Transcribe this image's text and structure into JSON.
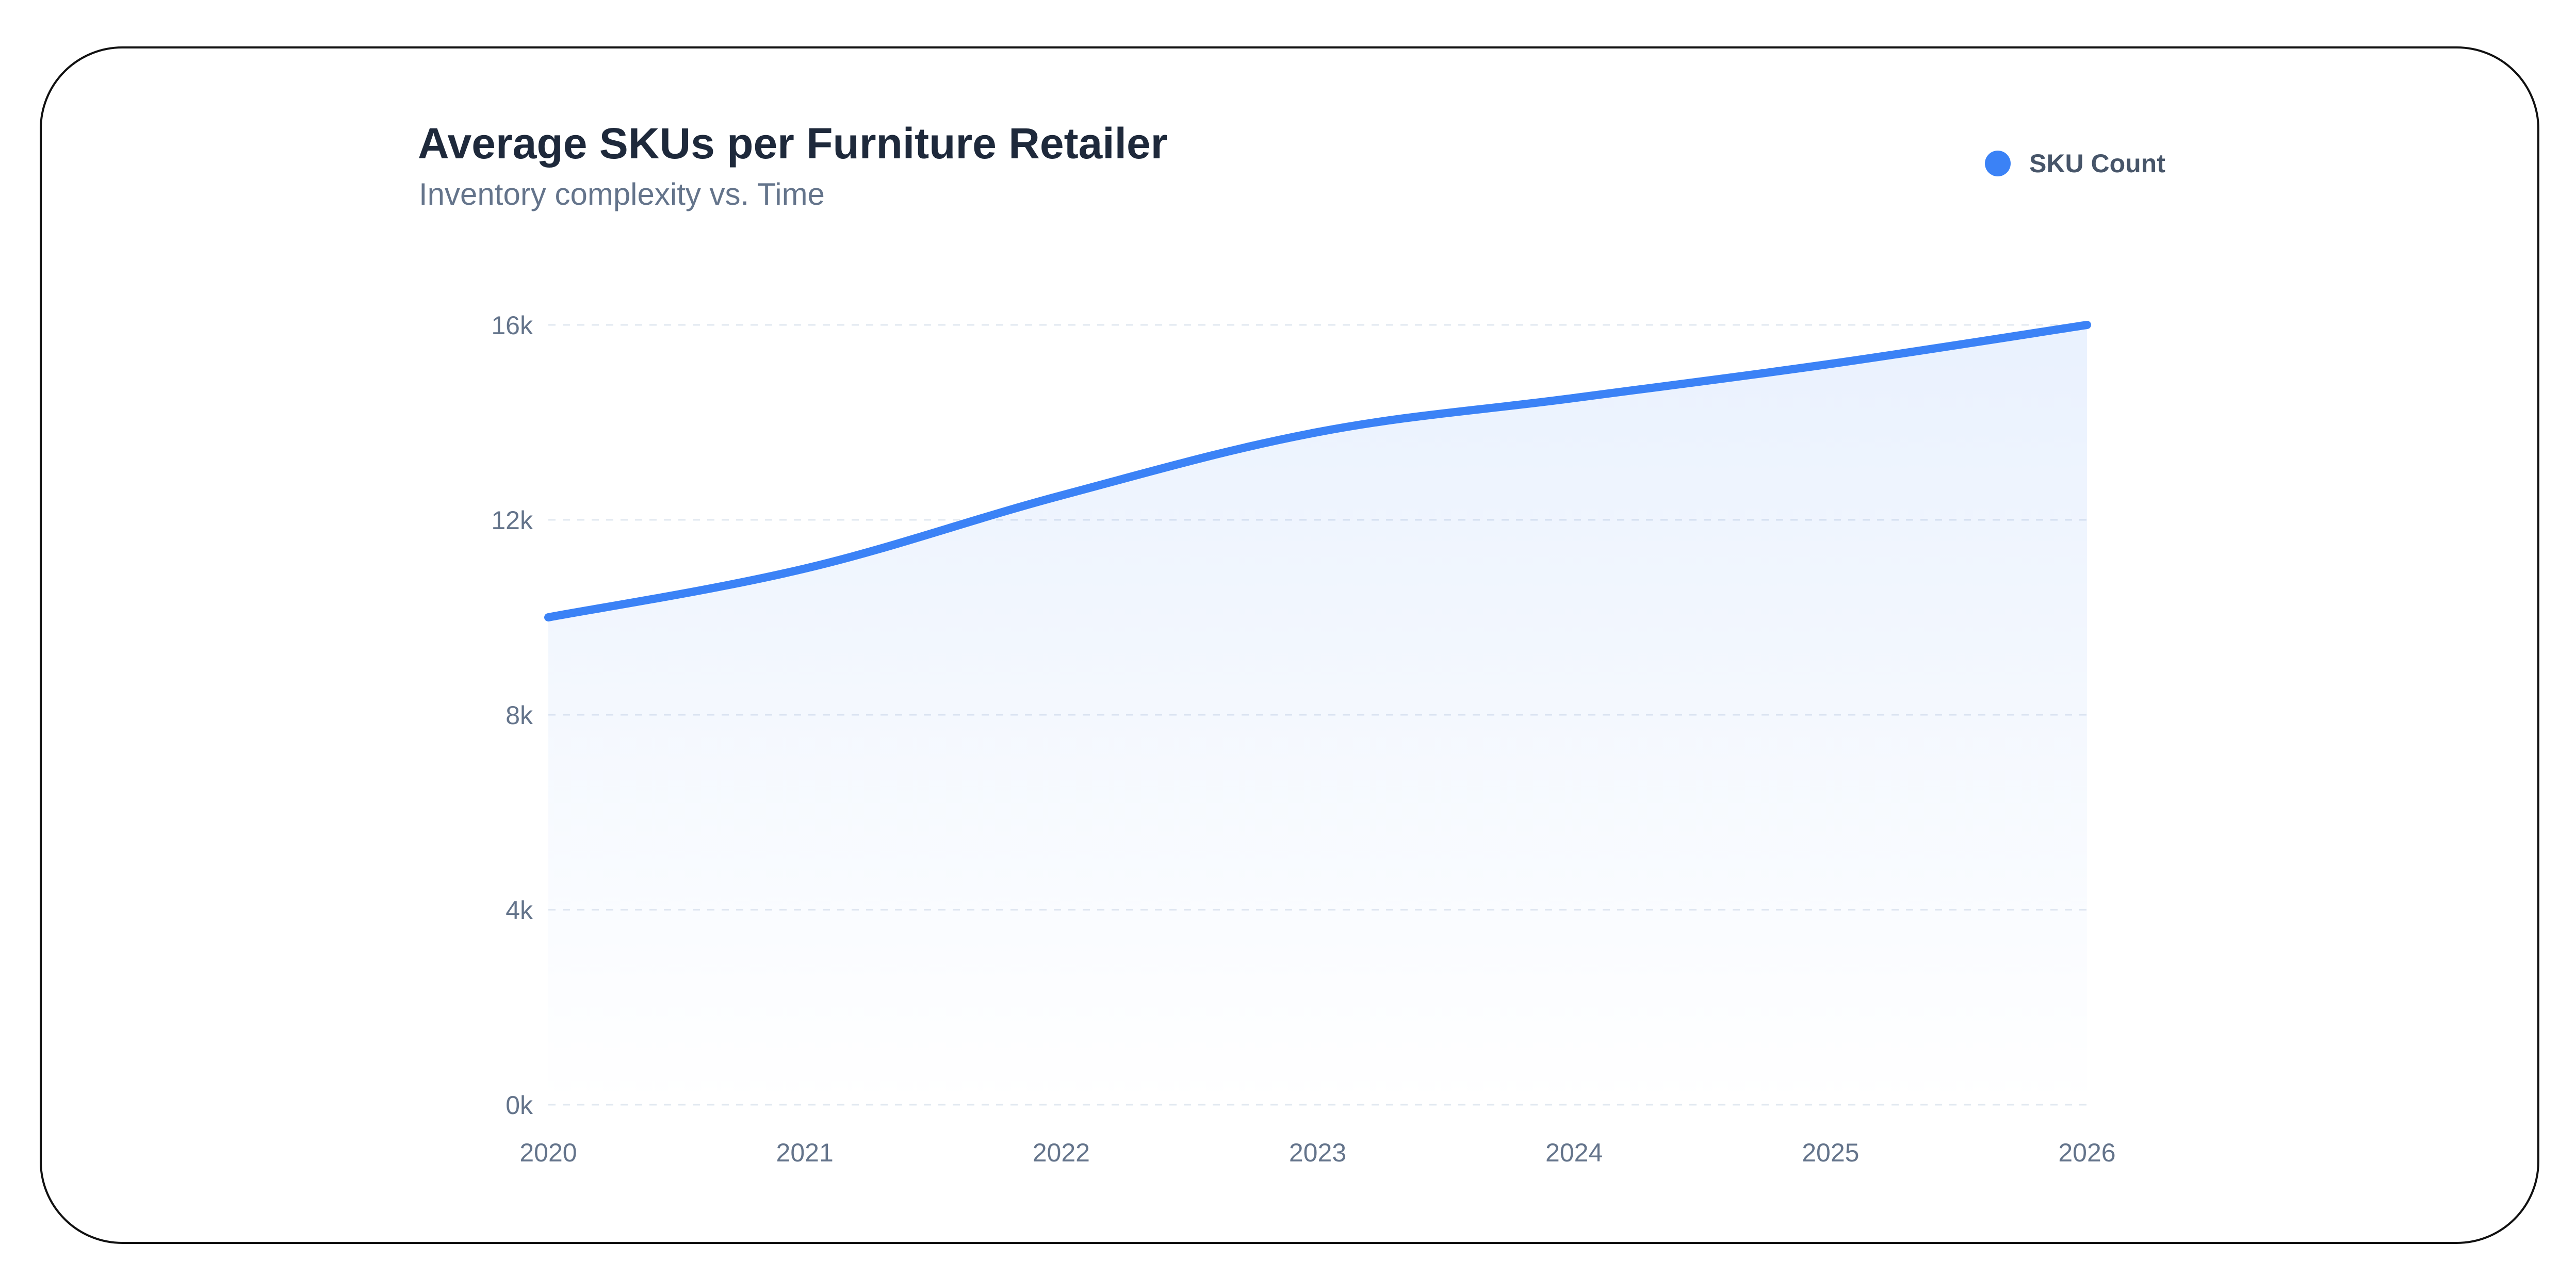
{
  "chart_data": {
    "type": "area",
    "title": "Average SKUs per Furniture Retailer",
    "subtitle": "Inventory complexity vs. Time",
    "xlabel": "",
    "ylabel": "",
    "x": [
      2020,
      2021,
      2022,
      2023,
      2024,
      2025,
      2026
    ],
    "x_tick_labels": [
      "2020",
      "2021",
      "2022",
      "2023",
      "2024",
      "2025",
      "2026"
    ],
    "y_ticks": [
      0,
      4000,
      8000,
      12000,
      16000
    ],
    "y_tick_labels": [
      "0k",
      "4k",
      "8k",
      "12k",
      "16k"
    ],
    "ylim": [
      0,
      16000
    ],
    "xlim": [
      2020,
      2026
    ],
    "grid": true,
    "legend_position": "top-right",
    "series": [
      {
        "name": "SKU Count",
        "color": "#3b82f6",
        "values": [
          10000,
          11000,
          12500,
          13800,
          14500,
          15200,
          16000
        ]
      }
    ]
  }
}
